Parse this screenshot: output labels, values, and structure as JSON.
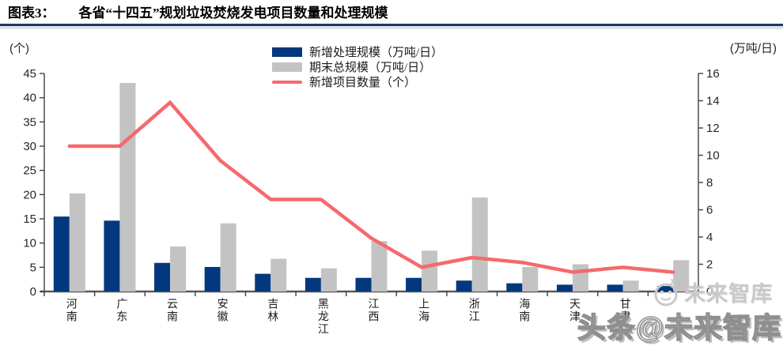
{
  "header": {
    "figure_label": "图表3：",
    "title": "各省“十四五”规划垃圾焚烧发电项目数量和处理规模"
  },
  "watermark": {
    "small_text": "未来智库",
    "large_text": "头条@未来智库",
    "logo": "compass-badge-icon"
  },
  "colors": {
    "title_underline": "#1F3864",
    "bar_new_scale": "#04387E",
    "bar_total_scale": "#C3C3C3",
    "line_new_projects": "#F5696C",
    "axis": "#595959"
  },
  "chart_data": {
    "type": "combo",
    "title": "各省“十四五”规划垃圾焚烧发电项目数量和处理规模",
    "categories": [
      "河南",
      "广东",
      "云南",
      "安徽",
      "吉林",
      "黑龙江",
      "江西",
      "上海",
      "浙江",
      "海南",
      "天津",
      "甘肃",
      ""
    ],
    "series": [
      {
        "key": "new-added-scale",
        "name": "新增处理规模（万吨/日）",
        "type": "bar",
        "axis": "right",
        "color": "#04387E",
        "values": [
          5.5,
          5.2,
          2.1,
          1.8,
          1.3,
          1.0,
          1.0,
          1.0,
          0.8,
          0.6,
          0.5,
          0.5,
          0.4
        ]
      },
      {
        "key": "period-end-total-scale",
        "name": "期末总规模（万吨/日）",
        "type": "bar",
        "axis": "right",
        "color": "#C3C3C3",
        "values": [
          7.2,
          15.3,
          3.3,
          5.0,
          2.4,
          1.7,
          3.7,
          3.0,
          6.9,
          1.8,
          2.0,
          0.8,
          2.3
        ]
      },
      {
        "key": "new-project-count",
        "name": "新增项目数量（个）",
        "type": "line",
        "axis": "left",
        "color": "#F5696C",
        "values": [
          30,
          30,
          39,
          27,
          19,
          19,
          11,
          5,
          7,
          6,
          4,
          5,
          4
        ]
      }
    ],
    "left_axis": {
      "unit": "(个)",
      "min": 0,
      "max": 45,
      "step": 5,
      "ticks": [
        0,
        5,
        10,
        15,
        20,
        25,
        30,
        35,
        40,
        45
      ]
    },
    "right_axis": {
      "unit": "(万吨/日)",
      "min": 0,
      "max": 16,
      "step": 2,
      "ticks": [
        0,
        2,
        4,
        6,
        8,
        10,
        12,
        14,
        16
      ]
    },
    "legend_position": "top-center",
    "grid": false
  }
}
